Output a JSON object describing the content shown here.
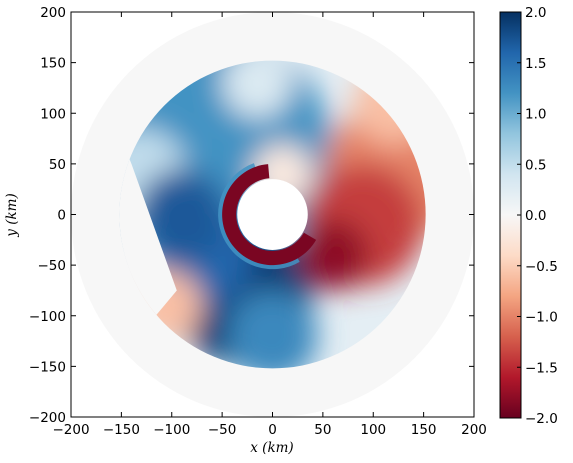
{
  "chart_data": {
    "type": "heatmap",
    "title": "",
    "xlabel": "x (km)",
    "ylabel": "y (km)",
    "xlim": [
      -200,
      200
    ],
    "ylim": [
      -200,
      200
    ],
    "x_ticks": [
      -200,
      -150,
      -100,
      -50,
      0,
      50,
      100,
      150,
      200
    ],
    "y_ticks": [
      -200,
      -150,
      -100,
      -50,
      0,
      50,
      100,
      150,
      200
    ],
    "x_tick_labels": [
      "−200",
      "−150",
      "−100",
      "−50",
      "0",
      "50",
      "100",
      "150",
      "200"
    ],
    "y_tick_labels": [
      "−200",
      "−150",
      "−100",
      "−50",
      "0",
      "50",
      "100",
      "150",
      "200"
    ],
    "colorbar": {
      "range": [
        -2.0,
        2.0
      ],
      "ticks": [
        2.0,
        1.5,
        1.0,
        0.5,
        0.0,
        -0.5,
        -1.0,
        -1.5,
        -2.0
      ],
      "tick_labels": [
        "2.0",
        "1.5",
        "1.0",
        "0.5",
        "0.0",
        "−0.5",
        "−1.0",
        "−1.5",
        "−2.0"
      ],
      "colormap": [
        "#67001f",
        "#b2182b",
        "#d6604d",
        "#f4a582",
        "#fddbc7",
        "#f7f7f7",
        "#d1e5f0",
        "#92c5de",
        "#4393c3",
        "#2166ac",
        "#053061"
      ]
    },
    "field": {
      "outer_disk_radius_km": 200,
      "outer_disk_value": 0.0,
      "inner_hole_radius_km": 35,
      "grid": "on",
      "blobs": [
        {
          "cx": -60,
          "cy": 60,
          "r": 120,
          "value": 1.2
        },
        {
          "cx": -130,
          "cy": 40,
          "r": 45,
          "value": 0.5
        },
        {
          "cx": -30,
          "cy": -80,
          "r": 70,
          "value": 1.9
        },
        {
          "cx": -70,
          "cy": -40,
          "r": 50,
          "value": 1.6
        },
        {
          "cx": 0,
          "cy": -120,
          "r": 45,
          "value": 1.3
        },
        {
          "cx": -90,
          "cy": 0,
          "r": 45,
          "value": 1.7
        },
        {
          "cx": -15,
          "cy": 130,
          "r": 35,
          "value": 0.3
        },
        {
          "cx": 120,
          "cy": 40,
          "r": 70,
          "value": -1.0
        },
        {
          "cx": 90,
          "cy": -10,
          "r": 60,
          "value": -1.4
        },
        {
          "cx": 120,
          "cy": 110,
          "r": 40,
          "value": -0.6
        },
        {
          "cx": 60,
          "cy": -40,
          "r": 35,
          "value": -1.8
        },
        {
          "cx": -105,
          "cy": -90,
          "r": 35,
          "value": -0.6
        },
        {
          "cx": 10,
          "cy": 40,
          "r": 30,
          "value": -0.2
        }
      ],
      "ring": {
        "inner_km": 36,
        "outer_km": 50,
        "value": -1.9,
        "start_deg": 95,
        "end_deg": 330
      },
      "ring_edge": {
        "inner_km": 48,
        "outer_km": 54,
        "value": 1.2,
        "start_deg": 110,
        "end_deg": 300
      },
      "outer_field_radius_km": 152,
      "cut_line": {
        "from": [
          -140,
          50
        ],
        "to": [
          -95,
          -75
        ]
      }
    }
  }
}
